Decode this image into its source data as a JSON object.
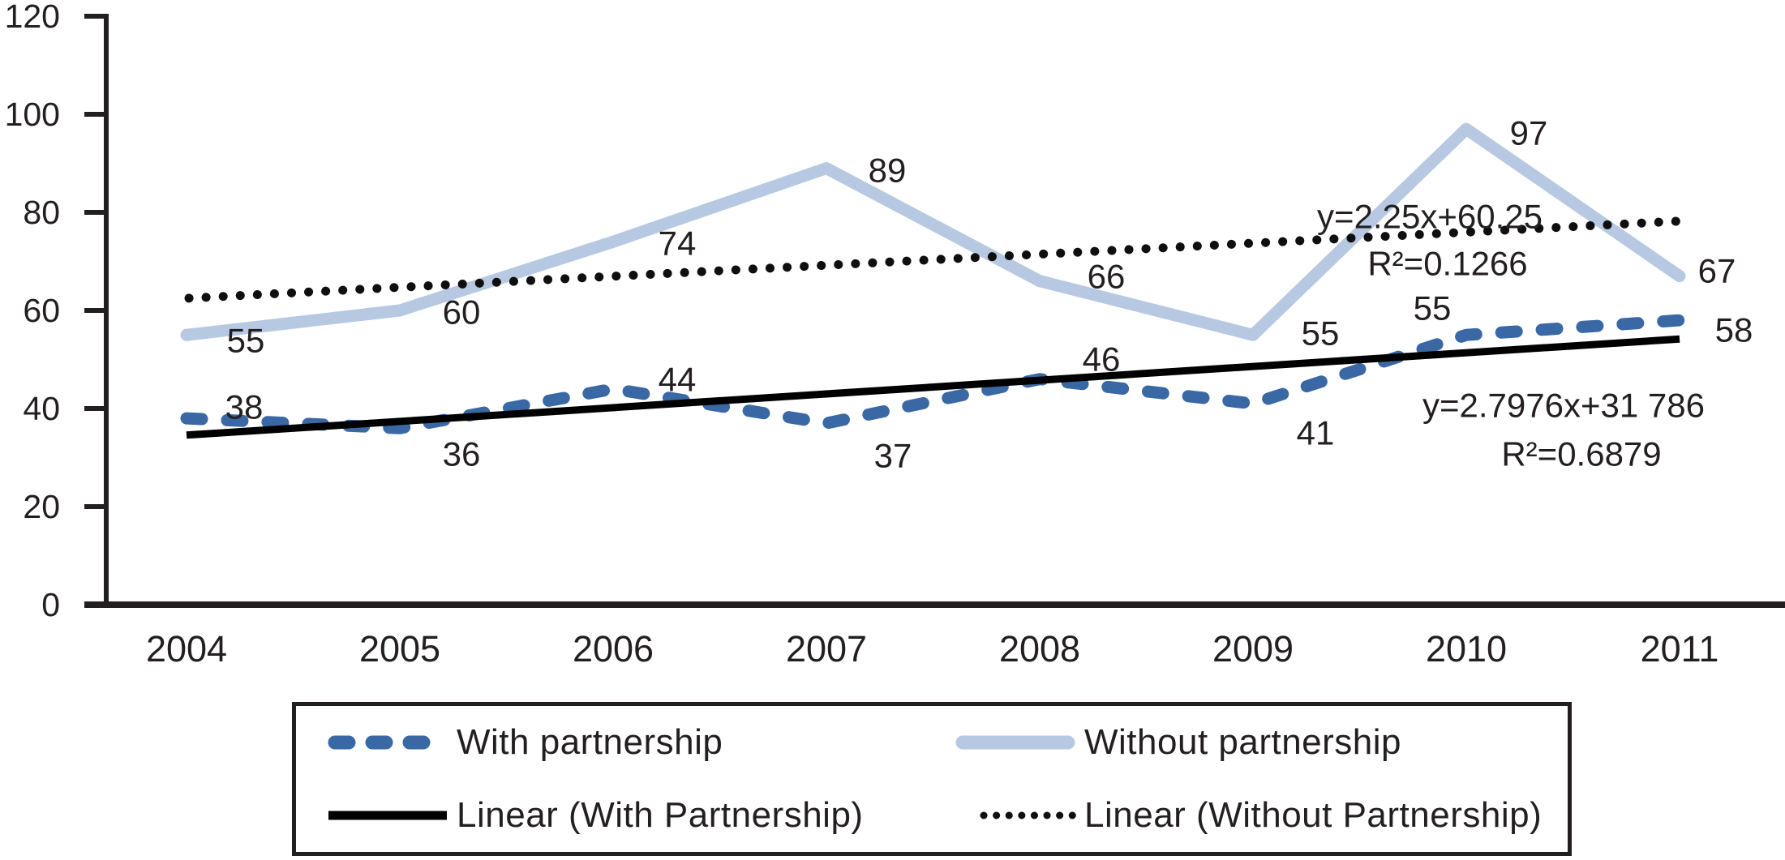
{
  "chart_data": {
    "type": "line",
    "title": "",
    "xlabel": "",
    "ylabel": "",
    "categories": [
      "2004",
      "2005",
      "2006",
      "2007",
      "2008",
      "2009",
      "2010",
      "2011"
    ],
    "x": [
      2004,
      2005,
      2006,
      2007,
      2008,
      2009,
      2010,
      2011
    ],
    "ylim": [
      0,
      120
    ],
    "yticks": [
      0,
      20,
      40,
      60,
      80,
      100,
      120
    ],
    "grid": false,
    "legend_position": "bottom",
    "series": [
      {
        "name": "With partnership",
        "values": [
          38,
          36,
          44,
          37,
          46,
          41,
          55,
          58
        ],
        "color": "#3A68A4",
        "line_style": "dashed"
      },
      {
        "name": "Without partnership",
        "values": [
          55,
          60,
          74,
          89,
          66,
          55,
          97,
          67
        ],
        "color": "#B7C9E2",
        "line_style": "solid"
      },
      {
        "name": "Linear (With Partnership)",
        "color": "#000000",
        "line_style": "solid",
        "trend_endpoints": [
          34.58,
          54.17
        ],
        "equation": "y=2.7976x+31 786",
        "r_squared": "R²=0.6879"
      },
      {
        "name": "Linear (Without Partnership)",
        "color": "#0f0f0f",
        "line_style": "dotted",
        "trend_endpoints": [
          62.5,
          78.25
        ],
        "equation": "y=2.25x+60.25",
        "r_squared": "R²=0.1266"
      }
    ],
    "colors": {
      "axis": "#231f20",
      "text": "#231f20",
      "background": "#ffffff"
    }
  }
}
